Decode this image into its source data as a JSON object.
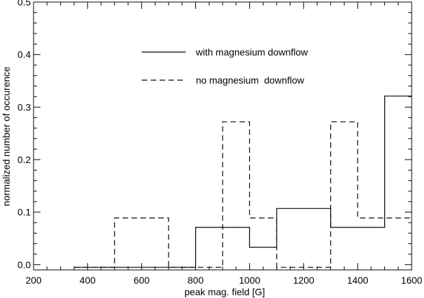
{
  "chart_data": {
    "type": "line",
    "xlabel": "peak mag. field [G]",
    "ylabel": "normalized number of occurence",
    "xlim": [
      200,
      1600
    ],
    "ylim": [
      -0.01,
      0.5
    ],
    "xticks": [
      200,
      400,
      600,
      800,
      1000,
      1200,
      1400,
      1600
    ],
    "yticks": [
      0.0,
      0.1,
      0.2,
      0.3,
      0.4,
      0.5
    ],
    "grid": false,
    "legend_position": "upper-center",
    "series": [
      {
        "name": "with magnesium downflow",
        "style": "solid",
        "step_edges": [
          350,
          500,
          600,
          700,
          800,
          900,
          1000,
          1100,
          1200,
          1300,
          1400,
          1500,
          1600
        ],
        "values": [
          -0.005,
          -0.005,
          -0.005,
          -0.005,
          0.071,
          0.071,
          0.033,
          0.107,
          0.107,
          0.071,
          0.071,
          0.321
        ]
      },
      {
        "name": "no magnesium  downflow",
        "style": "dashed",
        "step_edges": [
          350,
          500,
          600,
          700,
          800,
          900,
          1000,
          1100,
          1200,
          1300,
          1400,
          1500,
          1600
        ],
        "values": [
          -0.005,
          0.089,
          0.089,
          -0.005,
          -0.005,
          0.272,
          0.089,
          -0.005,
          -0.005,
          0.272,
          0.089,
          0.089
        ]
      }
    ]
  }
}
